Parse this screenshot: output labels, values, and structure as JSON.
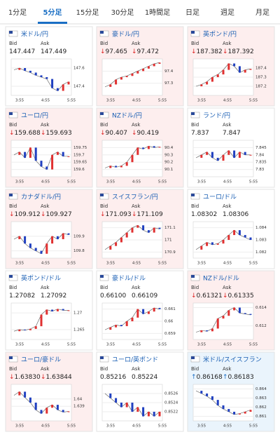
{
  "tabs": [
    "1分足",
    "5分足",
    "15分足",
    "30分足",
    "1時間足",
    "日足",
    "週足",
    "月足"
  ],
  "selected_tab": 1,
  "labels": {
    "bid": "Bid",
    "ask": "Ask"
  },
  "time_labels": [
    "3:55",
    "4:55",
    "5:55"
  ],
  "panels": [
    {
      "name": "米ドル/円",
      "bid": "147.447",
      "ask": "147.449",
      "bg": "#ffffff",
      "ylim": [
        147.3,
        147.7
      ],
      "yticks": [
        147.6,
        147.4
      ],
      "closes": [
        147.58,
        147.6,
        147.57,
        147.55,
        147.52,
        147.5,
        147.48,
        147.38,
        147.35,
        147.42,
        147.45
      ]
    },
    {
      "name": "豪ドル/円",
      "arrow": "↓",
      "bid": "97.465",
      "ask": "97.472",
      "bg": "#fdeeee",
      "ylim": [
        97.2,
        97.5
      ],
      "yticks": [
        97.4,
        97.3
      ],
      "closes": [
        97.27,
        97.29,
        97.33,
        97.35,
        97.36,
        97.38,
        97.4,
        97.42,
        97.44,
        97.46,
        97.47
      ]
    },
    {
      "name": "英ポンド/円",
      "arrow": "↓",
      "bid": "187.382",
      "ask": "187.392",
      "bg": "#fdeeee",
      "ylim": [
        187.1,
        187.5
      ],
      "yticks": [
        187.4,
        187.3,
        187.2
      ],
      "closes": [
        187.2,
        187.22,
        187.25,
        187.3,
        187.33,
        187.38,
        187.45,
        187.42,
        187.35,
        187.38,
        187.39
      ]
    },
    {
      "name": "ユーロ/円",
      "arrow": "↓",
      "bid": "159.688",
      "ask": "159.693",
      "bg": "#fdeeee",
      "ylim": [
        159.55,
        159.8
      ],
      "yticks": [
        159.75,
        159.7,
        159.65,
        159.6
      ],
      "closes": [
        159.7,
        159.72,
        159.68,
        159.75,
        159.66,
        159.62,
        159.6,
        159.7,
        159.72,
        159.69,
        159.69
      ]
    },
    {
      "name": "NZドル/円",
      "arrow": "↓",
      "bid": "90.407",
      "ask": "90.419",
      "bg": "#fdeeee",
      "ylim": [
        90.0,
        90.5
      ],
      "yticks": [
        90.4,
        90.3,
        90.2,
        90.1
      ],
      "closes": [
        90.12,
        90.15,
        90.13,
        90.15,
        90.2,
        90.3,
        90.4,
        90.38,
        90.42,
        90.4,
        90.41
      ]
    },
    {
      "name": "ランド/円",
      "bid": "7.837",
      "ask": "7.847",
      "bg": "#ffffff",
      "ylim": [
        7.825,
        7.85
      ],
      "yticks": [
        7.845,
        7.84,
        7.835,
        7.83
      ],
      "closes": [
        7.838,
        7.84,
        7.842,
        7.838,
        7.836,
        7.84,
        7.843,
        7.838,
        7.842,
        7.84,
        7.84
      ]
    },
    {
      "name": "カナダドル/円",
      "arrow": "↓",
      "bid": "109.912",
      "ask": "109.927",
      "bg": "#fdeeee",
      "ylim": [
        109.75,
        110
      ],
      "yticks": [
        109.9,
        109.8
      ],
      "closes": [
        109.88,
        109.9,
        109.85,
        109.82,
        109.8,
        109.78,
        109.85,
        109.9,
        109.88,
        109.92,
        109.91
      ]
    },
    {
      "name": "スイスフラン/円",
      "arrow": "↓",
      "bid": "171.093",
      "ask": "171.109",
      "bg": "#fdeeee",
      "ylim": [
        170.85,
        171.15
      ],
      "yticks": [
        171.1,
        171,
        170.9
      ],
      "closes": [
        170.92,
        170.95,
        170.98,
        171.02,
        171.06,
        171.1,
        171.12,
        171.08,
        171.06,
        171.1,
        171.09
      ]
    },
    {
      "name": "ユーロ/ドル",
      "bid": "1.08302",
      "ask": "1.08306",
      "bg": "#ffffff",
      "ylim": [
        1.0815,
        1.0845
      ],
      "yticks": [
        1.084,
        1.083,
        1.082
      ],
      "closes": [
        1.0822,
        1.0825,
        1.0828,
        1.0826,
        1.0827,
        1.083,
        1.0834,
        1.0838,
        1.0834,
        1.0832,
        1.083
      ]
    },
    {
      "name": "英ポンド/ドル",
      "bid": "1.27082",
      "ask": "1.27092",
      "bg": "#ffffff",
      "ylim": [
        1.262,
        1.273
      ],
      "yticks": [
        1.27,
        1.265
      ],
      "closes": [
        1.2645,
        1.265,
        1.2648,
        1.2652,
        1.266,
        1.2695,
        1.271,
        1.2705,
        1.2712,
        1.2708,
        1.2708
      ]
    },
    {
      "name": "豪ドル/ドル",
      "bid": "0.66100",
      "ask": "0.66109",
      "bg": "#ffffff",
      "ylim": [
        0.6585,
        0.6615
      ],
      "yticks": [
        0.661,
        0.66,
        0.659
      ],
      "closes": [
        0.6593,
        0.6595,
        0.6597,
        0.6596,
        0.66,
        0.6603,
        0.661,
        0.6606,
        0.6608,
        0.6611,
        0.661
      ]
    },
    {
      "name": "NZドル/ドル",
      "arrow": "↓",
      "bid": "0.61321",
      "ask": "0.61335",
      "bg": "#fdeeee",
      "ylim": [
        0.6105,
        0.6145
      ],
      "yticks": [
        0.614,
        0.612
      ],
      "closes": [
        0.6113,
        0.6115,
        0.6114,
        0.6117,
        0.6128,
        0.6131,
        0.6137,
        0.614,
        0.6134,
        0.6133,
        0.6132
      ]
    },
    {
      "name": "ユーロ/豪ドル",
      "arrow": "↓",
      "bid": "1.63830",
      "ask": "1.63844",
      "bg": "#fdeeee",
      "ylim": [
        1.637,
        1.642
      ],
      "yticks": [
        1.64,
        1.639
      ],
      "closes": [
        1.6405,
        1.641,
        1.6402,
        1.6395,
        1.6385,
        1.638,
        1.6388,
        1.6392,
        1.6385,
        1.6382,
        1.6383
      ]
    },
    {
      "name": "ユーロ/英ポンド",
      "bid": "0.85216",
      "ask": "0.85224",
      "bg": "#ffffff",
      "ylim": [
        0.852,
        0.8528
      ],
      "yticks": [
        0.8526,
        0.8524,
        0.8522
      ],
      "closes": [
        0.8526,
        0.8525,
        0.8524,
        0.8523,
        0.8524,
        0.8522,
        0.8523,
        0.8521,
        0.8522,
        0.8521,
        0.8522
      ]
    },
    {
      "name": "米ドル/スイスフラン",
      "arrow": "↑",
      "bid": "0.86168",
      "ask": "0.86183",
      "bg": "#eaf4fc",
      "ylim": [
        0.8605,
        0.8645
      ],
      "yticks": [
        0.864,
        0.863,
        0.862,
        0.861
      ],
      "closes": [
        0.8638,
        0.8635,
        0.8632,
        0.8628,
        0.8622,
        0.8618,
        0.8615,
        0.8612,
        0.8613,
        0.8615,
        0.8617
      ]
    }
  ]
}
